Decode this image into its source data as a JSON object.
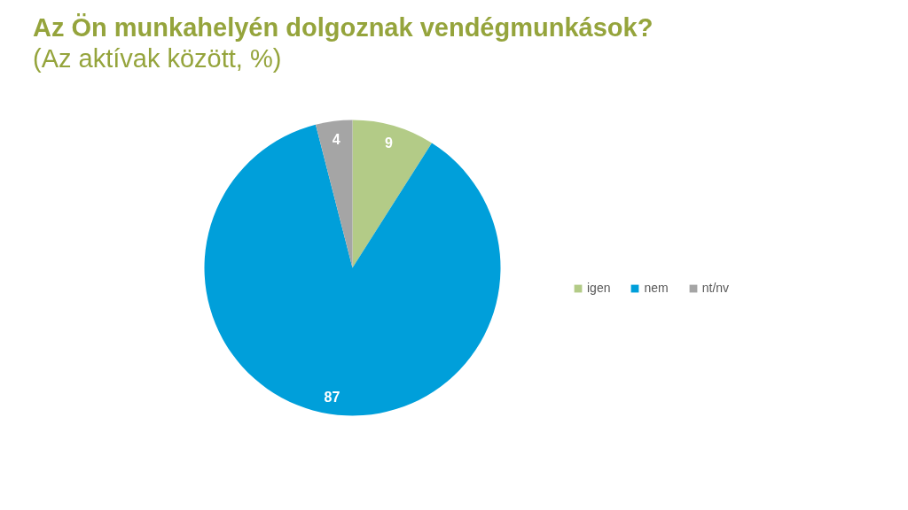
{
  "chart_data": {
    "type": "pie",
    "title": "Az Ön munkahelyén dolgoznak vendégmunkások?",
    "subtitle": "(Az aktívak között, %)",
    "categories": [
      "igen",
      "nem",
      "nt/nv"
    ],
    "values": [
      9,
      87,
      4
    ],
    "colors": [
      "#b3cb87",
      "#009fda",
      "#a5a5a5"
    ],
    "data_labels": true,
    "legend": "right"
  }
}
